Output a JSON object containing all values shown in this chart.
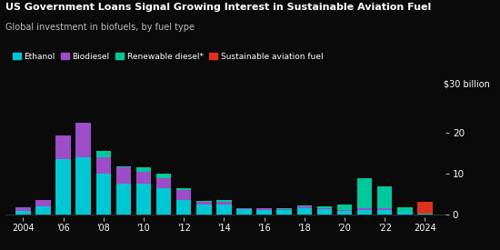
{
  "title": "US Government Loans Signal Growing Interest in Sustainable Aviation Fuel",
  "subtitle": "Global investment in biofuels, by fuel type",
  "ylabel_annotation": "$30 billion",
  "background_color": "#0a0a0a",
  "text_color": "#ffffff",
  "colors": {
    "ethanol": "#00c8d2",
    "biodiesel": "#9c4dc8",
    "renewable_diesel": "#00c89b",
    "saf": "#e03020"
  },
  "years": [
    2004,
    2005,
    2006,
    2007,
    2008,
    2009,
    2010,
    2011,
    2012,
    2013,
    2014,
    2015,
    2016,
    2017,
    2018,
    2019,
    2020,
    2021,
    2022,
    2023,
    2024
  ],
  "ethanol": [
    0.8,
    2.0,
    13.5,
    14.0,
    10.0,
    7.5,
    7.5,
    6.5,
    3.5,
    2.5,
    2.5,
    1.2,
    1.0,
    1.0,
    1.5,
    1.2,
    0.8,
    1.0,
    1.0,
    0.5,
    0.0
  ],
  "biodiesel": [
    1.0,
    1.5,
    6.0,
    8.5,
    4.0,
    4.0,
    3.0,
    2.5,
    2.5,
    0.5,
    0.5,
    0.4,
    0.4,
    0.2,
    0.5,
    0.4,
    0.2,
    0.5,
    0.4,
    0.2,
    0.0
  ],
  "renewable_diesel": [
    0.0,
    0.0,
    0.0,
    0.0,
    1.5,
    0.3,
    1.0,
    1.0,
    0.5,
    0.3,
    0.5,
    0.0,
    0.2,
    0.2,
    0.2,
    0.3,
    1.5,
    7.5,
    5.5,
    1.0,
    0.1
  ],
  "saf": [
    0.0,
    0.0,
    0.0,
    0.0,
    0.0,
    0.0,
    0.0,
    0.0,
    0.0,
    0.0,
    0.0,
    0.0,
    0.0,
    0.0,
    0.0,
    0.0,
    0.0,
    0.0,
    0.0,
    0.0,
    3.0
  ],
  "xtick_labels": [
    "2004",
    "'06",
    "'08",
    "'10",
    "'12",
    "'14",
    "'16",
    "'18",
    "'20",
    "'22",
    "2024"
  ],
  "xtick_years": [
    2004,
    2006,
    2008,
    2010,
    2012,
    2014,
    2016,
    2018,
    2020,
    2022,
    2024
  ],
  "yticks": [
    0,
    10,
    20
  ],
  "ylim": [
    -0.8,
    30
  ],
  "xlim": [
    2003.1,
    2025.0
  ]
}
